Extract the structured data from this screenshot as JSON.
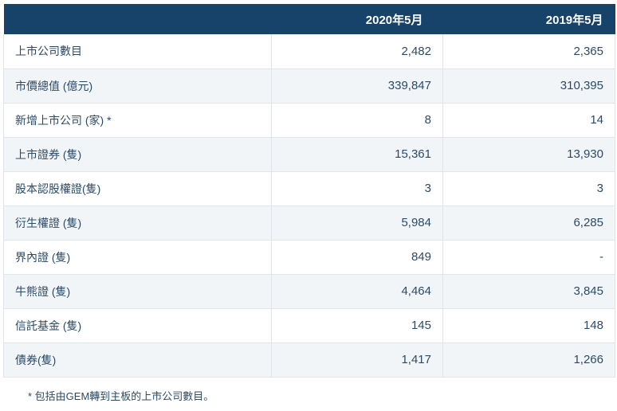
{
  "table": {
    "header": {
      "corner": "",
      "col_2020": "2020年5月",
      "col_2019": "2019年5月"
    },
    "rows": [
      {
        "label": "上市公司數目",
        "v2020": "2,482",
        "v2019": "2,365"
      },
      {
        "label": "市價總值 (億元)",
        "v2020": "339,847",
        "v2019": "310,395"
      },
      {
        "label": "新增上市公司 (家) *",
        "v2020": "8",
        "v2019": "14"
      },
      {
        "label": "上市證券 (隻)",
        "v2020": "15,361",
        "v2019": "13,930"
      },
      {
        "label": "股本認股權證(隻)",
        "v2020": "3",
        "v2019": "3"
      },
      {
        "label": "衍生權證 (隻)",
        "v2020": "5,984",
        "v2019": "6,285"
      },
      {
        "label": "界內證 (隻)",
        "v2020": "849",
        "v2019": "-"
      },
      {
        "label": "牛熊證 (隻)",
        "v2020": "4,464",
        "v2019": "3,845"
      },
      {
        "label": "信託基金 (隻)",
        "v2020": "145",
        "v2019": "148"
      },
      {
        "label": "債券(隻)",
        "v2020": "1,417",
        "v2019": "1,266"
      }
    ],
    "footnote": "* 包括由GEM轉到主板的上市公司數目。"
  },
  "colors": {
    "header_bg": "#17426a",
    "header_text": "#ffffff",
    "body_text": "#2c4a68",
    "row_alt_bg": "#f2f5f7",
    "border": "#dfe5ea",
    "page_bg": "#ffffff"
  }
}
